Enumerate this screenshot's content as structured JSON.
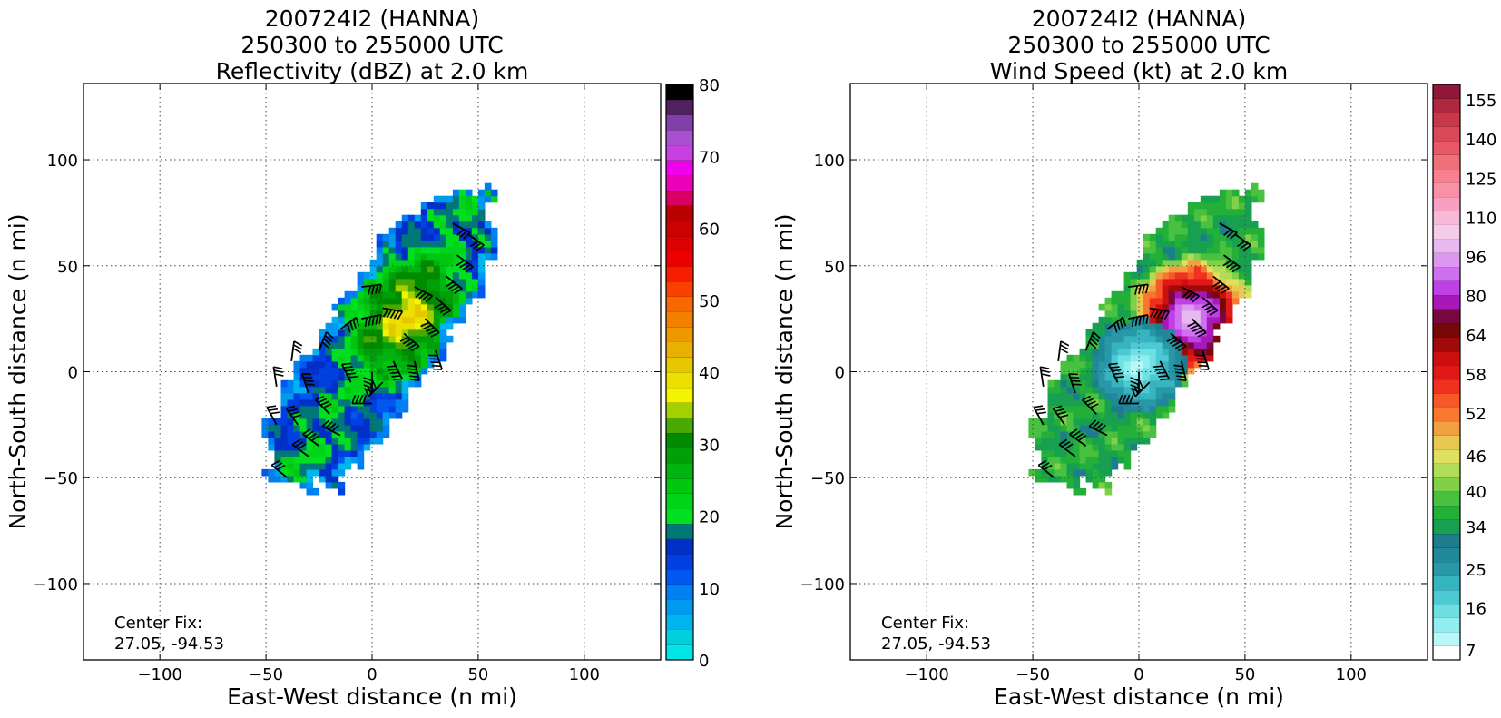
{
  "chart_data": [
    {
      "type": "heatmap",
      "title_lines": [
        "200724I2 (HANNA)",
        "250300 to 255000 UTC",
        "Reflectivity (dBZ) at 2.0 km"
      ],
      "xlabel": "East-West distance (n mi)",
      "ylabel": "North-South distance (n mi)",
      "xlim": [
        -136,
        136
      ],
      "ylim": [
        -136,
        136
      ],
      "xticks": [
        "−100",
        "−50",
        "0",
        "50",
        "100"
      ],
      "yticks": [
        "−100",
        "−50",
        "0",
        "50",
        "100"
      ],
      "grid": true,
      "annotation": [
        "Center Fix:",
        "27.05, -94.53"
      ],
      "colorbar": {
        "min": 0,
        "max": 80,
        "step": 2.5,
        "ticks": [
          "0",
          "10",
          "20",
          "30",
          "40",
          "50",
          "60",
          "70",
          "80"
        ],
        "colors": [
          "#00e5e5",
          "#00cfe0",
          "#00b5ee",
          "#0099f0",
          "#0080f0",
          "#0058f0",
          "#0040e0",
          "#0030c8",
          "#007878",
          "#00e020",
          "#00d418",
          "#00c610",
          "#00b410",
          "#009e08",
          "#008a00",
          "#4aa800",
          "#a4d000",
          "#f4f400",
          "#ece000",
          "#e6c800",
          "#e8b000",
          "#ee9800",
          "#f48000",
          "#f86800",
          "#fa4000",
          "#f81c00",
          "#ee0000",
          "#dc0000",
          "#cc0000",
          "#b80000",
          "#d80060",
          "#ec00b8",
          "#f000e8",
          "#c840e0",
          "#a850d0",
          "#8040a8",
          "#502060",
          "#000000"
        ]
      },
      "field": {
        "kind": "reflectivity",
        "band_axis_deg": 56,
        "band_center": [
          5,
          15
        ],
        "band_half_length": 85,
        "band_half_width": 26,
        "core_center": [
          18,
          25
        ],
        "core_value": 40,
        "edge_value": 14
      },
      "barbs": [
        [
          -45,
          -7,
          35
        ],
        [
          -38,
          5,
          30
        ],
        [
          -30,
          -10,
          40
        ],
        [
          -20,
          -20,
          45
        ],
        [
          -10,
          -5,
          50
        ],
        [
          0,
          -15,
          45
        ],
        [
          10,
          5,
          50
        ],
        [
          -25,
          10,
          40
        ],
        [
          -15,
          20,
          45
        ],
        [
          -5,
          25,
          50
        ],
        [
          5,
          30,
          55
        ],
        [
          15,
          18,
          55
        ],
        [
          25,
          25,
          50
        ],
        [
          30,
          35,
          45
        ],
        [
          35,
          45,
          40
        ],
        [
          40,
          55,
          40
        ],
        [
          45,
          65,
          35
        ],
        [
          38,
          70,
          30
        ],
        [
          -35,
          -25,
          40
        ],
        [
          -25,
          -35,
          40
        ],
        [
          -15,
          -30,
          45
        ],
        [
          -40,
          -50,
          30
        ],
        [
          -30,
          -40,
          35
        ],
        [
          0,
          0,
          45
        ],
        [
          20,
          40,
          45
        ],
        [
          30,
          10,
          50
        ],
        [
          20,
          5,
          55
        ],
        [
          -5,
          40,
          40
        ],
        [
          -45,
          -25,
          35
        ],
        [
          5,
          -5,
          45
        ]
      ]
    },
    {
      "type": "heatmap",
      "title_lines": [
        "200724I2 (HANNA)",
        "250300 to 255000 UTC",
        "Wind Speed (kt) at 2.0 km"
      ],
      "xlabel": "East-West distance (n mi)",
      "ylabel": "North-South distance (n mi)",
      "xlim": [
        -136,
        136
      ],
      "ylim": [
        -136,
        136
      ],
      "xticks": [
        "−100",
        "−50",
        "0",
        "50",
        "100"
      ],
      "yticks": [
        "−100",
        "−50",
        "0",
        "50",
        "100"
      ],
      "grid": true,
      "annotation": [
        "Center Fix:",
        "27.05, -94.53"
      ],
      "colorbar": {
        "min": 7,
        "max": 160,
        "ticks": [
          {
            "label": "7",
            "frac": 0.017
          },
          {
            "label": "16",
            "frac": 0.091
          },
          {
            "label": "25",
            "frac": 0.158
          },
          {
            "label": "34",
            "frac": 0.232
          },
          {
            "label": "40",
            "frac": 0.293
          },
          {
            "label": "46",
            "frac": 0.355
          },
          {
            "label": "52",
            "frac": 0.429
          },
          {
            "label": "58",
            "frac": 0.497
          },
          {
            "label": "64",
            "frac": 0.565
          },
          {
            "label": "80",
            "frac": 0.633
          },
          {
            "label": "96",
            "frac": 0.701
          },
          {
            "label": "110",
            "frac": 0.769
          },
          {
            "label": "125",
            "frac": 0.837
          },
          {
            "label": "140",
            "frac": 0.905
          },
          {
            "label": "155",
            "frac": 0.973
          }
        ],
        "colors": [
          "#ffffff",
          "#b8f8f8",
          "#90eef0",
          "#6ee0e4",
          "#4ccad4",
          "#36b4c0",
          "#2898a8",
          "#208898",
          "#1e7c8c",
          "#16a050",
          "#24b038",
          "#48c040",
          "#80d048",
          "#b0dc58",
          "#e0e060",
          "#e8c850",
          "#f0a040",
          "#f87830",
          "#f85828",
          "#f03020",
          "#e01818",
          "#cc1010",
          "#a00a0a",
          "#780808",
          "#780840",
          "#a818b8",
          "#c040e8",
          "#d070f0",
          "#dc98f0",
          "#e8b8f0",
          "#f4cce8",
          "#f8b8d8",
          "#f8a0c0",
          "#f890a8",
          "#f88090",
          "#f07078",
          "#e85868",
          "#d84858",
          "#c83848",
          "#b02840",
          "#901838"
        ]
      },
      "field": {
        "kind": "windspeed",
        "band_axis_deg": 56,
        "band_center": [
          5,
          15
        ],
        "band_half_length": 85,
        "band_half_width": 26,
        "eye_center": [
          0,
          3
        ],
        "max_wind_center": [
          25,
          25
        ],
        "max_value": 85
      },
      "barbs": [
        [
          -45,
          -7,
          35
        ],
        [
          -38,
          5,
          30
        ],
        [
          -30,
          -10,
          40
        ],
        [
          -20,
          -20,
          45
        ],
        [
          -10,
          -5,
          50
        ],
        [
          0,
          -15,
          45
        ],
        [
          10,
          5,
          50
        ],
        [
          -25,
          10,
          40
        ],
        [
          -15,
          20,
          45
        ],
        [
          -5,
          25,
          50
        ],
        [
          5,
          30,
          55
        ],
        [
          15,
          18,
          55
        ],
        [
          25,
          25,
          50
        ],
        [
          30,
          35,
          45
        ],
        [
          35,
          45,
          40
        ],
        [
          40,
          55,
          40
        ],
        [
          45,
          65,
          35
        ],
        [
          38,
          70,
          30
        ],
        [
          -35,
          -25,
          40
        ],
        [
          -25,
          -35,
          40
        ],
        [
          -15,
          -30,
          45
        ],
        [
          -40,
          -50,
          30
        ],
        [
          -30,
          -40,
          35
        ],
        [
          0,
          0,
          45
        ],
        [
          20,
          40,
          45
        ],
        [
          30,
          10,
          50
        ],
        [
          20,
          5,
          55
        ],
        [
          -5,
          40,
          40
        ],
        [
          -45,
          -25,
          35
        ],
        [
          5,
          -5,
          45
        ]
      ]
    }
  ]
}
